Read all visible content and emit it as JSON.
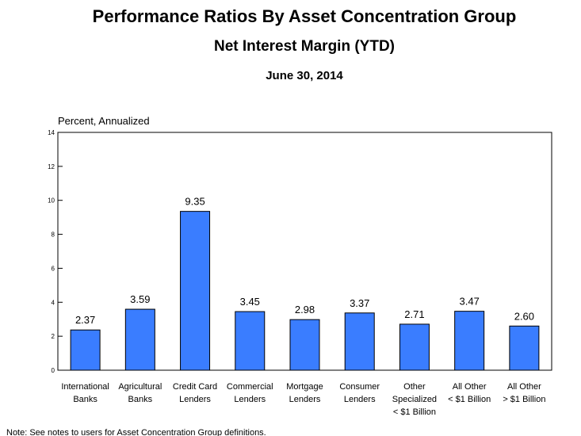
{
  "chart_data": {
    "type": "bar",
    "title": "Performance Ratios By Asset Concentration Group",
    "subtitle": "Net Interest Margin (YTD)",
    "date": "June 30, 2014",
    "ylabel": "Percent, Annualized",
    "xlabel": "",
    "ylim": [
      0,
      14
    ],
    "yticks": [
      0,
      2,
      4,
      6,
      8,
      10,
      12,
      14
    ],
    "categories": [
      [
        "International",
        "Banks"
      ],
      [
        "Agricultural",
        "Banks"
      ],
      [
        "Credit Card",
        "Lenders"
      ],
      [
        "Commercial",
        "Lenders"
      ],
      [
        "Mortgage",
        "Lenders"
      ],
      [
        "Consumer",
        "Lenders"
      ],
      [
        "Other",
        "Specialized",
        "< $1 Billion"
      ],
      [
        "All Other",
        "< $1 Billion"
      ],
      [
        "All Other",
        "> $1 Billion"
      ]
    ],
    "values": [
      2.37,
      3.59,
      9.35,
      3.45,
      2.98,
      3.37,
      2.71,
      3.47,
      2.6
    ],
    "value_labels": [
      "2.37",
      "3.59",
      "9.35",
      "3.45",
      "2.98",
      "3.37",
      "2.71",
      "3.47",
      "2.60"
    ],
    "bar_color": "#3a7dff",
    "grid": false,
    "legend": "none"
  },
  "note": "Note: See notes to users for Asset Concentration Group definitions."
}
